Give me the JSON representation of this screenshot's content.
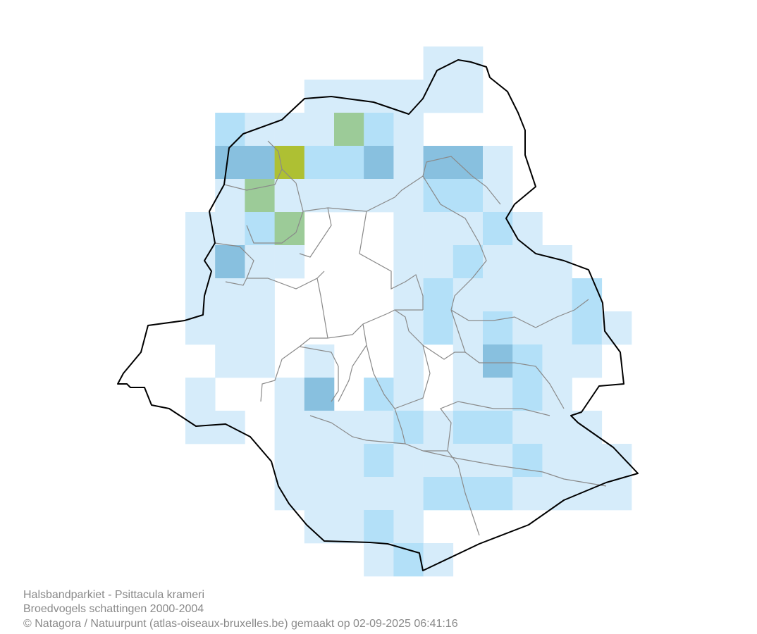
{
  "caption": {
    "line1": "Halsbandparkiet - Psittacula krameri",
    "line2": "Broedvogels schattingen 2000-2004",
    "line3": "© Natagora / Natuurpunt (atlas-oiseaux-bruxelles.be) gemaakt op 02-09-2025 06:41:16"
  }
}
